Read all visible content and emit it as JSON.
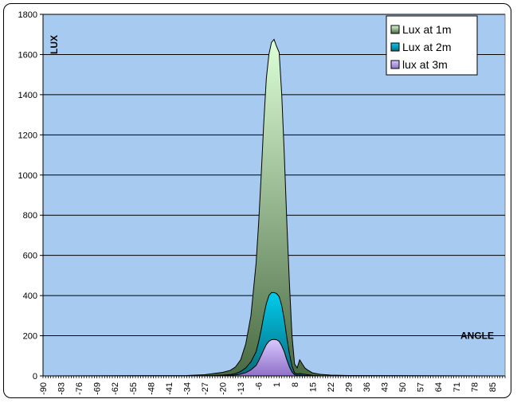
{
  "chart_data": {
    "type": "area",
    "title": "",
    "xlabel": "ANGLE",
    "ylabel": "LUX",
    "ylim": [
      0,
      1800
    ],
    "yticks": [
      0,
      200,
      400,
      600,
      800,
      1000,
      1200,
      1400,
      1600,
      1800
    ],
    "xlim": [
      -90,
      90
    ],
    "xtick_labels": [
      "-90",
      "-83",
      "-76",
      "-69",
      "-62",
      "-55",
      "-48",
      "-41",
      "-34",
      "-27",
      "-20",
      "-13",
      "-6",
      "1",
      "8",
      "15",
      "22",
      "29",
      "36",
      "43",
      "50",
      "57",
      "64",
      "71",
      "78",
      "85"
    ],
    "grid": true,
    "legend_position": "top-right",
    "x": [
      -90,
      -34,
      -27,
      -20,
      -17,
      -15,
      -13,
      -11,
      -9,
      -7,
      -6,
      -5,
      -4,
      -3,
      -2,
      -1,
      0,
      1,
      2,
      3,
      4,
      5,
      6,
      7,
      8,
      9,
      10,
      11,
      12,
      13,
      15,
      18,
      22,
      29,
      90
    ],
    "series": [
      {
        "name": "Lux at 1m",
        "color_top": "#ddffd8",
        "color_bottom": "#4a6a42",
        "values": [
          0,
          2,
          6,
          18,
          28,
          45,
          80,
          160,
          300,
          560,
          760,
          1000,
          1260,
          1480,
          1600,
          1660,
          1675,
          1640,
          1610,
          1400,
          1100,
          760,
          460,
          200,
          60,
          40,
          80,
          60,
          40,
          30,
          15,
          8,
          4,
          2,
          0
        ]
      },
      {
        "name": "Lux at 2m",
        "color_top": "#00ccee",
        "color_bottom": "#0a6a7a",
        "values": [
          0,
          0,
          1,
          4,
          7,
          12,
          22,
          40,
          70,
          120,
          170,
          230,
          300,
          360,
          400,
          415,
          415,
          410,
          395,
          350,
          280,
          190,
          110,
          50,
          15,
          10,
          12,
          10,
          8,
          6,
          3,
          1,
          0,
          0,
          0
        ]
      },
      {
        "name": "lux at 3m",
        "color_top": "#d8c8ff",
        "color_bottom": "#9070c8",
        "values": [
          0,
          0,
          0,
          2,
          3,
          5,
          9,
          16,
          30,
          52,
          75,
          102,
          130,
          156,
          172,
          180,
          182,
          180,
          172,
          150,
          120,
          80,
          45,
          20,
          6,
          3,
          4,
          3,
          2,
          2,
          1,
          0,
          0,
          0,
          0
        ]
      }
    ]
  }
}
